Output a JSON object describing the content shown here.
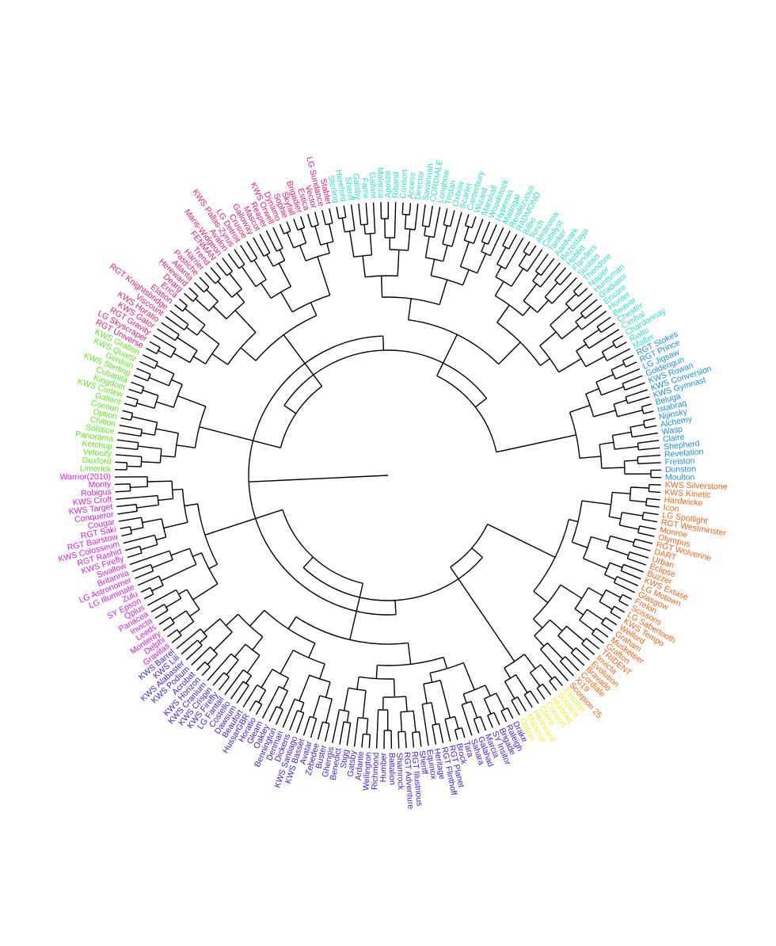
{
  "groups": [
    {
      "color": "#e8661c",
      "leaves": [
        "KWS Silverstone",
        "KWS Kinetic",
        "Hardwicke",
        "Icon",
        "LG Spotlight",
        "RGT Westminster",
        "Monroe",
        "Olympus",
        "RGT Wolverine",
        "DART",
        "Urban",
        "Eclipse",
        "Buzzer",
        "KWS Extase",
        "LG Motown",
        "Glasgow",
        "Frelon",
        "Scissons",
        "LG Sabertooth",
        "KWS Tempo",
        "Welford",
        "Graham",
        "Musketeer",
        "Grafton",
        "TRIDENT",
        "Invicta",
        "Evolution",
        "Bravado",
        "Cordiale",
        "Xi19",
        "Scorpion 25"
      ]
    },
    {
      "color": "#ecec30",
      "leaves": [
        "Einstein",
        "Solstice",
        "Istabraq",
        "Consort",
        "Claire",
        "Hereward",
        "Malacca",
        "Option"
      ]
    },
    {
      "color": "#3a1fd6",
      "leaves": [
        "Drake",
        "Raleigh",
        "Brigade",
        "SY Insitor",
        "Marcia",
        "Galahad",
        "Sahara",
        "Tara",
        "Brock",
        "RGT Planet",
        "RGT Flinthoff",
        "Heritage",
        "Equinox",
        "Sheriff",
        "RGT Illustrious",
        "RGT Adventure",
        "Shamrock",
        "Battalion",
        "Humber",
        "Richmond",
        "Wellington",
        "Ardante",
        "Gatsby",
        "Stigg",
        "Benedict",
        "Ghengis",
        "Buster",
        "Zebedee",
        "Avatar",
        "KWS Basset",
        "KWS Santiago",
        "Dickens",
        "Denman",
        "Bennington",
        "Oakley",
        "Gleam",
        "Horatio",
        "HussarGBR",
        "Beaufort",
        "Dawsum",
        "Costello",
        "LG Fantail",
        "KWS Firefly",
        "KWS Crispin",
        "KWS Cranium",
        "KWS Horizon",
        "Acrobat",
        "KWS Podium",
        "KWS Alabaster",
        "KWS Lili",
        "KWS Barrel"
      ]
    },
    {
      "color": "#d41fd6",
      "leaves": [
        "Gravitas",
        "Delphi",
        "Monterey",
        "Leeds",
        "Invicta",
        "Panacea",
        "Qplus",
        "SY Epson",
        "Zulu",
        "LG Illuminate",
        "LG Astronomer",
        "Britannia",
        "Swallow",
        "KWS Firefly",
        "RGT Rashid",
        "KWS Colosseum",
        "RGT Bairstow",
        "RGT Saki",
        "Cougar",
        "Conqueror",
        "KWS Target",
        "KWS Croft",
        "Robigus",
        "Monty",
        "Warrior(2010)"
      ]
    },
    {
      "color": "#5ee81f",
      "leaves": [
        "Limerick",
        "Duxford",
        "Velocity",
        "Ketchup",
        "Panorama",
        "Solstice",
        "Chilton",
        "Option",
        "Cocoon",
        "Gallant",
        "KWS Curlew",
        "Kingdom",
        "Cubanita",
        "KWS Sterling",
        "Gordian",
        "KWS Quartz",
        "KWS Grafton"
      ]
    },
    {
      "color": "#d81e78",
      "leaves": [
        "RGT Universe",
        "LG Skyscraper",
        "RGT Gravity",
        "KWS Gator",
        "KWS Horatio",
        "Viscount",
        "RGT Knightsbridge",
        "Elation",
        "Erica",
        "Dearg",
        "Hereward",
        "Atlanta",
        "Pastiche",
        "Harrier",
        "Trend",
        "FENMAN",
        "Maris-Widgeon",
        "Avalon",
        "KWS Pallas-Zyrus",
        "LG Detroit",
        "Crusoe",
        "Galloway",
        "Mascot",
        "Reaper",
        "KWS Orwell",
        "Dynamo",
        "Sophie",
        "Skyfall",
        "Brigadier",
        "Estica",
        "Vector",
        "LG Sundance",
        "Stabler"
      ]
    },
    {
      "color": "#2ee0c8",
      "leaves": [
        "Sterling",
        "Hereford",
        "Sheriff",
        "Gatsby",
        "Fame",
        "Gallant",
        "Malacca",
        "Apostle",
        "Riband",
        "Consort",
        "Access",
        "Director",
        "Savannah",
        "CORDIALE",
        "Longbow",
        "Tristan",
        "Oxbow",
        "Scarlet",
        "Canterbury",
        "Wizard",
        "Marshall",
        "Woodstock",
        "Hyperion",
        "Madrigal",
        "Rendezvous",
        "RADMOND",
        "Bilbo",
        "Torch",
        "Ambrosia",
        "Catalyst",
        "Tanker",
        "Aardvark",
        "Bezostaya",
        "Hobbit",
        "Flanders",
        "Sustain",
        "Theodore",
        "Napier",
        "Huntsman",
        "Gladiator",
        "Encore",
        "Hunter",
        "Beaver",
        "Chester",
        "Cimbal",
        "Chardonnay",
        "Rialto",
        "Malter"
      ]
    },
    {
      "color": "#1e8fd6",
      "leaves": [
        "RGT Stokes",
        "RGT Prince",
        "LG Jigsaw",
        "Goldengun",
        "KWS Rowan",
        "KWS Conversion",
        "KWS Gymnast",
        "Beluga",
        "Istabraq",
        "Nijinsky",
        "Alchemy",
        "Wasp",
        "Claire",
        "Shepherd",
        "Revelation",
        "Freiston",
        "Dunston",
        "Moulton"
      ]
    }
  ]
}
